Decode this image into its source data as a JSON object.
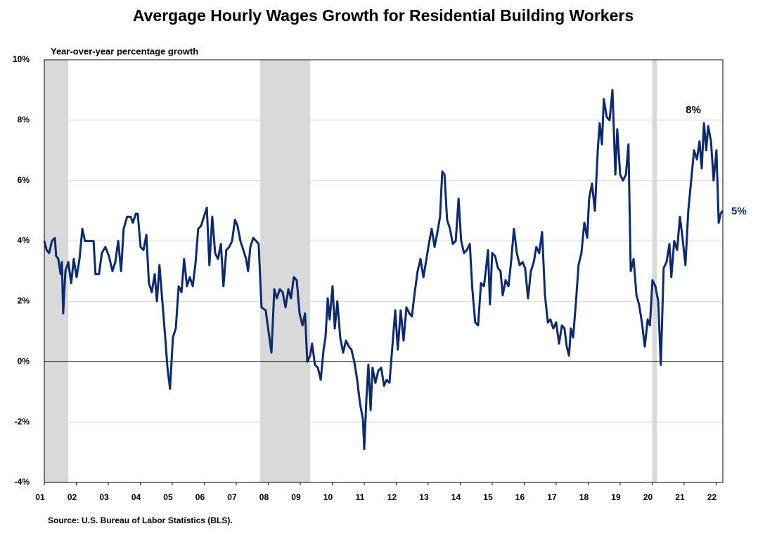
{
  "chart_data": {
    "type": "line",
    "title": "Avergage Hourly Wages Growth for Residential Building Workers",
    "y_label": "Year-over-year percentage growth",
    "source": "Source: U.S. Bureau of Labor Statistics (BLS).",
    "annotations": [
      "8%",
      "5%"
    ],
    "color": "#0d2a6b",
    "shade_color": "#d9d9d9",
    "shaded_ranges": [
      [
        2001.0,
        2001.75
      ],
      [
        2007.75,
        2009.31
      ],
      [
        2020.0,
        2020.15
      ]
    ],
    "grid": true,
    "xlim": [
      2001,
      2022.21
    ],
    "ylim": [
      -4,
      10
    ],
    "yticks": [
      {
        "value": -4,
        "label": "-4%"
      },
      {
        "value": -2,
        "label": "-2%"
      },
      {
        "value": 0,
        "label": "0%"
      },
      {
        "value": 2,
        "label": "2%"
      },
      {
        "value": 4,
        "label": "4%"
      },
      {
        "value": 6,
        "label": "6%"
      },
      {
        "value": 8,
        "label": "8%"
      },
      {
        "value": 10,
        "label": "10%"
      }
    ],
    "xticks": [
      {
        "value": 2001,
        "label": "01"
      },
      {
        "value": 2002,
        "label": "02"
      },
      {
        "value": 2003,
        "label": "03"
      },
      {
        "value": 2004,
        "label": "04"
      },
      {
        "value": 2005,
        "label": "05"
      },
      {
        "value": 2006,
        "label": "06"
      },
      {
        "value": 2007,
        "label": "07"
      },
      {
        "value": 2008,
        "label": "08"
      },
      {
        "value": 2009,
        "label": "09"
      },
      {
        "value": 2010,
        "label": "10"
      },
      {
        "value": 2011,
        "label": "11"
      },
      {
        "value": 2012,
        "label": "12"
      },
      {
        "value": 2013,
        "label": "13"
      },
      {
        "value": 2014,
        "label": "14"
      },
      {
        "value": 2015,
        "label": "15"
      },
      {
        "value": 2016,
        "label": "16"
      },
      {
        "value": 2017,
        "label": "17"
      },
      {
        "value": 2018,
        "label": "18"
      },
      {
        "value": 2019,
        "label": "19"
      },
      {
        "value": 2020,
        "label": "20"
      },
      {
        "value": 2021,
        "label": "21"
      },
      {
        "value": 2022,
        "label": "22"
      }
    ],
    "x": [
      2001.0,
      2001.07,
      2001.15,
      2001.24,
      2001.33,
      2001.37,
      2001.44,
      2001.51,
      2001.55,
      2001.59,
      2001.66,
      2001.75,
      2001.84,
      2001.92,
      2002.01,
      2002.1,
      2002.19,
      2002.27,
      2002.41,
      2002.54,
      2002.6,
      2002.71,
      2002.8,
      2002.91,
      2003.02,
      2003.13,
      2003.22,
      2003.31,
      2003.4,
      2003.48,
      2003.59,
      2003.7,
      2003.77,
      2003.86,
      2003.92,
      2004.01,
      2004.1,
      2004.19,
      2004.27,
      2004.36,
      2004.45,
      2004.52,
      2004.6,
      2004.69,
      2004.78,
      2004.85,
      2004.93,
      2005.02,
      2005.11,
      2005.2,
      2005.29,
      2005.37,
      2005.46,
      2005.55,
      2005.64,
      2005.73,
      2005.81,
      2005.9,
      2005.99,
      2006.08,
      2006.16,
      2006.25,
      2006.34,
      2006.43,
      2006.52,
      2006.6,
      2006.69,
      2006.78,
      2006.87,
      2006.96,
      2007.04,
      2007.13,
      2007.22,
      2007.31,
      2007.37,
      2007.44,
      2007.53,
      2007.62,
      2007.7,
      2007.79,
      2007.92,
      2008.01,
      2008.1,
      2008.19,
      2008.27,
      2008.36,
      2008.45,
      2008.54,
      2008.63,
      2008.71,
      2008.8,
      2008.89,
      2008.98,
      2009.07,
      2009.15,
      2009.22,
      2009.31,
      2009.37,
      2009.46,
      2009.55,
      2009.64,
      2009.73,
      2009.79,
      2009.86,
      2009.92,
      2010.01,
      2010.08,
      2010.16,
      2010.25,
      2010.34,
      2010.43,
      2010.52,
      2010.6,
      2010.69,
      2010.78,
      2010.87,
      2010.96,
      2011.0,
      2011.07,
      2011.13,
      2011.2,
      2011.26,
      2011.35,
      2011.44,
      2011.53,
      2011.62,
      2011.7,
      2011.79,
      2011.88,
      2011.97,
      2012.05,
      2012.14,
      2012.23,
      2012.32,
      2012.41,
      2012.49,
      2012.58,
      2012.67,
      2012.76,
      2012.85,
      2012.93,
      2013.02,
      2013.11,
      2013.2,
      2013.29,
      2013.37,
      2013.44,
      2013.51,
      2013.59,
      2013.68,
      2013.77,
      2013.86,
      2013.95,
      2014.03,
      2014.12,
      2014.21,
      2014.3,
      2014.38,
      2014.47,
      2014.56,
      2014.65,
      2014.74,
      2014.8,
      2014.87,
      2014.93,
      2015.0,
      2015.09,
      2015.18,
      2015.26,
      2015.33,
      2015.42,
      2015.51,
      2015.59,
      2015.68,
      2015.77,
      2015.86,
      2015.95,
      2016.03,
      2016.12,
      2016.21,
      2016.3,
      2016.38,
      2016.47,
      2016.56,
      2016.65,
      2016.74,
      2016.82,
      2016.91,
      2017.0,
      2017.09,
      2017.18,
      2017.26,
      2017.33,
      2017.4,
      2017.46,
      2017.53,
      2017.62,
      2017.7,
      2017.79,
      2017.88,
      2017.97,
      2018.03,
      2018.12,
      2018.21,
      2018.3,
      2018.36,
      2018.43,
      2018.49,
      2018.58,
      2018.67,
      2018.76,
      2018.85,
      2018.91,
      2019.0,
      2019.09,
      2019.18,
      2019.26,
      2019.33,
      2019.42,
      2019.51,
      2019.59,
      2019.68,
      2019.77,
      2019.86,
      2019.93,
      2020.01,
      2020.1,
      2020.19,
      2020.27,
      2020.36,
      2020.45,
      2020.54,
      2020.6,
      2020.69,
      2020.78,
      2020.87,
      2020.96,
      2021.04,
      2021.13,
      2021.22,
      2021.31,
      2021.4,
      2021.48,
      2021.55,
      2021.62,
      2021.69,
      2021.75,
      2021.84,
      2021.92,
      2022.01,
      2022.08,
      2022.14,
      2022.21
    ],
    "values": [
      4.0,
      3.7,
      3.6,
      4.0,
      4.1,
      3.5,
      3.4,
      2.9,
      3.3,
      1.6,
      3.0,
      3.3,
      2.6,
      3.4,
      2.8,
      3.4,
      4.4,
      4.0,
      4.0,
      4.0,
      2.9,
      2.9,
      3.6,
      3.8,
      3.5,
      3.0,
      3.3,
      4.0,
      3.0,
      4.4,
      4.8,
      4.8,
      4.6,
      4.9,
      4.9,
      3.8,
      3.7,
      4.2,
      2.6,
      2.3,
      2.9,
      2.0,
      3.2,
      2.0,
      0.8,
      -0.2,
      -0.9,
      0.8,
      1.1,
      2.5,
      2.3,
      3.4,
      2.5,
      2.8,
      2.5,
      3.3,
      4.4,
      4.5,
      4.8,
      5.1,
      3.2,
      4.8,
      3.6,
      3.4,
      3.9,
      2.5,
      3.7,
      3.8,
      4.0,
      4.7,
      4.5,
      4.0,
      3.7,
      3.4,
      3.0,
      3.8,
      4.1,
      4.0,
      3.9,
      1.8,
      1.7,
      1.0,
      0.3,
      2.4,
      2.1,
      2.4,
      2.3,
      1.8,
      2.4,
      2.1,
      2.8,
      2.7,
      1.6,
      1.2,
      1.6,
      0.0,
      0.2,
      0.6,
      -0.1,
      -0.2,
      -0.6,
      0.4,
      0.8,
      2.1,
      1.4,
      2.5,
      1.1,
      2.0,
      0.8,
      0.3,
      0.7,
      0.5,
      0.4,
      0.0,
      -0.6,
      -1.4,
      -1.9,
      -2.9,
      -1.2,
      -0.1,
      -1.6,
      -0.2,
      -0.7,
      -0.3,
      -0.2,
      -0.8,
      -0.6,
      -0.7,
      0.5,
      1.7,
      0.4,
      1.7,
      0.7,
      1.8,
      1.6,
      1.5,
      2.3,
      3.0,
      3.4,
      2.8,
      3.3,
      3.9,
      4.4,
      3.8,
      4.3,
      4.8,
      6.3,
      6.2,
      4.7,
      4.4,
      3.9,
      4.0,
      5.4,
      4.0,
      3.6,
      3.7,
      3.9,
      2.4,
      1.3,
      1.2,
      2.6,
      2.5,
      3.0,
      3.7,
      1.9,
      3.6,
      3.5,
      3.1,
      3.0,
      2.2,
      2.7,
      2.5,
      3.3,
      4.4,
      3.6,
      3.2,
      3.3,
      3.1,
      2.1,
      3.0,
      3.3,
      3.8,
      3.6,
      4.3,
      2.2,
      1.3,
      1.4,
      1.1,
      1.3,
      0.6,
      1.2,
      1.1,
      0.5,
      0.2,
      1.1,
      0.8,
      2.0,
      3.2,
      3.6,
      4.6,
      4.1,
      5.4,
      5.9,
      5.0,
      7.0,
      7.9,
      7.2,
      8.7,
      8.1,
      8.0,
      9.0,
      6.2,
      7.7,
      6.2,
      6.0,
      6.2,
      7.2,
      3.0,
      3.4,
      2.2,
      1.9,
      1.3,
      0.5,
      1.4,
      1.2,
      2.7,
      2.5,
      2.0,
      -0.1,
      3.1,
      3.3,
      3.9,
      2.8,
      4.0,
      3.7,
      4.8,
      4.0,
      3.2,
      5.0,
      6.0,
      7.0,
      6.7,
      7.3,
      6.4,
      7.9,
      7.0,
      7.8,
      7.3,
      6.0,
      7.0,
      4.6,
      4.9,
      5.0
    ]
  }
}
